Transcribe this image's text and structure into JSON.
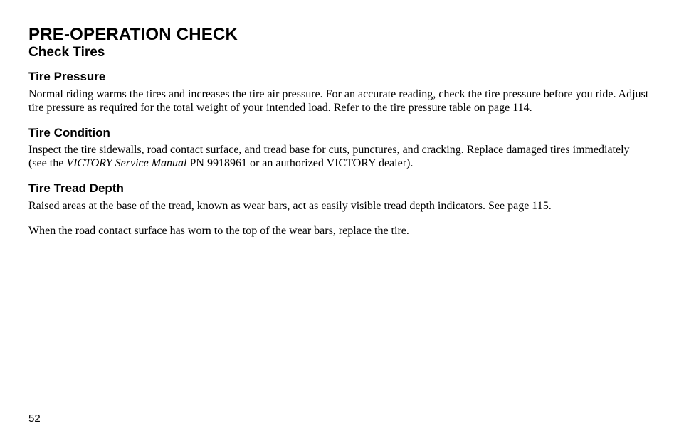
{
  "page": {
    "title": "PRE-OPERATION CHECK",
    "subtitle": "Check Tires",
    "number": "52",
    "background_color": "#ffffff",
    "text_color": "#000000",
    "fonts": {
      "heading_family": "Arial, Helvetica, sans-serif",
      "body_family": "\"Times New Roman\", Times, serif",
      "title_size_pt": 18,
      "subtitle_size_pt": 14,
      "section_heading_size_pt": 13,
      "body_size_pt": 12
    }
  },
  "sections": {
    "pressure": {
      "heading": "Tire Pressure",
      "body": "Normal riding warms the tires and increases the tire air pressure. For an accurate reading, check the tire pressure before you ride. Adjust tire pressure as required for the total weight of your intended load.  Refer to the tire pressure table on page 114."
    },
    "condition": {
      "heading": "Tire Condition",
      "body_pre": "Inspect the tire sidewalls, road contact surface, and tread base for cuts, punctures, and cracking. Replace damaged tires immediately (see the ",
      "body_ital": "VICTORY Service Manual",
      "body_post": " PN 9918961 or an authorized VICTORY dealer)."
    },
    "tread": {
      "heading": "Tire Tread Depth",
      "body1": "Raised areas at the base of the tread, known as wear bars, act as easily visible tread depth indicators. See page 115.",
      "body2": "When the road contact surface has worn to the top of the wear bars, replace the tire."
    }
  }
}
